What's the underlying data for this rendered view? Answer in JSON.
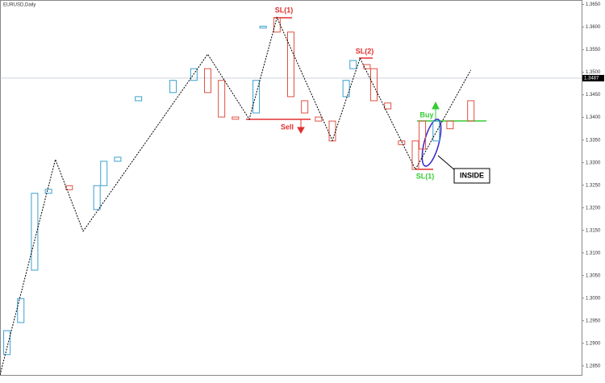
{
  "chart_data": {
    "type": "candlestick",
    "title": "EURUSD,Daily",
    "ylim": [
      1.283,
      1.366
    ],
    "xlim": [
      0,
      84
    ],
    "yticks": [
      {
        "value": 1.285,
        "label": "1.2850"
      },
      {
        "value": 1.29,
        "label": "1.2900"
      },
      {
        "value": 1.295,
        "label": "1.2950"
      },
      {
        "value": 1.3,
        "label": "1.3000"
      },
      {
        "value": 1.305,
        "label": "1.3050"
      },
      {
        "value": 1.31,
        "label": "1.3100"
      },
      {
        "value": 1.315,
        "label": "1.3150"
      },
      {
        "value": 1.32,
        "label": "1.3200"
      },
      {
        "value": 1.325,
        "label": "1.3250"
      },
      {
        "value": 1.33,
        "label": "1.3300"
      },
      {
        "value": 1.335,
        "label": "1.3350"
      },
      {
        "value": 1.34,
        "label": "1.3400"
      },
      {
        "value": 1.345,
        "label": "1.3450"
      },
      {
        "value": 1.35,
        "label": "1.3500"
      },
      {
        "value": 1.355,
        "label": "1.3550"
      },
      {
        "value": 1.36,
        "label": "1.3600"
      },
      {
        "value": 1.365,
        "label": "1.3650"
      }
    ],
    "up_color": "#3aa0d0",
    "down_color": "#e05040",
    "bars": {
      "x": [
        1,
        3,
        5,
        7,
        10,
        14,
        15,
        17,
        20,
        25,
        28,
        30,
        32,
        34,
        37,
        38,
        40,
        42,
        44,
        46,
        48,
        50,
        51,
        53,
        54,
        56,
        58,
        60,
        61,
        63,
        65,
        68
      ],
      "open": [
        1.2875,
        1.2946,
        1.3062,
        1.3232,
        1.3249,
        1.3196,
        1.3249,
        1.3303,
        1.3437,
        1.3455,
        1.3482,
        1.3508,
        1.3482,
        1.3401,
        1.341,
        1.3598,
        1.3621,
        1.3589,
        1.3437,
        1.3401,
        1.3392,
        1.3446,
        1.3508,
        1.3517,
        1.3508,
        1.3432,
        1.3348,
        1.3348,
        1.3392,
        1.3348,
        1.3392,
        1.3437
      ],
      "close": [
        1.2928,
        1.2999,
        1.3232,
        1.3241,
        1.324,
        1.3249,
        1.3303,
        1.3312,
        1.3446,
        1.3482,
        1.3508,
        1.3455,
        1.3401,
        1.3396,
        1.3482,
        1.3602,
        1.3589,
        1.3446,
        1.341,
        1.3392,
        1.3348,
        1.3482,
        1.3526,
        1.3508,
        1.3437,
        1.3419,
        1.334,
        1.3285,
        1.333,
        1.3392,
        1.3375,
        1.3392
      ]
    },
    "zigzag": {
      "x": [
        0,
        8,
        12,
        30,
        36,
        40,
        48,
        52,
        60,
        68
      ],
      "values": [
        1.283,
        1.3307,
        1.3148,
        1.354,
        1.3396,
        1.3621,
        1.3349,
        1.3531,
        1.3285,
        1.3505
      ]
    },
    "current_price": {
      "value": 1.3487,
      "label": "1.3487"
    },
    "annotations": {
      "sl1_top": "SL(1)",
      "sl2": "SL(2)",
      "sell": "Sell",
      "buy": "Buy",
      "sl1_bottom": "SL(1)",
      "inside": "INSIDE"
    }
  }
}
